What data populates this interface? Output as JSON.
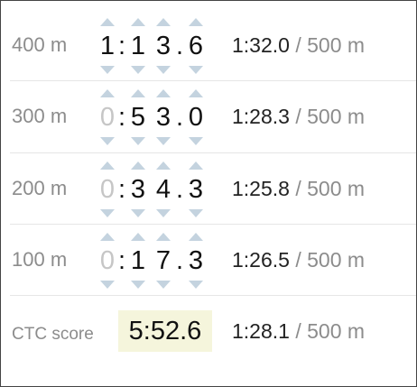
{
  "pieces": [
    {
      "distance": "400 m",
      "digits": [
        "1",
        "1",
        "3",
        "6"
      ],
      "dim": [
        false,
        false,
        false,
        false
      ],
      "split": "1:32.0",
      "per": " / 500 m"
    },
    {
      "distance": "300 m",
      "digits": [
        "0",
        "5",
        "3",
        "0"
      ],
      "dim": [
        true,
        false,
        false,
        false
      ],
      "split": "1:28.3",
      "per": " / 500 m"
    },
    {
      "distance": "200 m",
      "digits": [
        "0",
        "3",
        "4",
        "3"
      ],
      "dim": [
        true,
        false,
        false,
        false
      ],
      "split": "1:25.8",
      "per": " / 500 m"
    },
    {
      "distance": "100 m",
      "digits": [
        "0",
        "1",
        "7",
        "3"
      ],
      "dim": [
        true,
        false,
        false,
        false
      ],
      "split": "1:26.5",
      "per": " / 500 m"
    }
  ],
  "separators": [
    ":",
    "."
  ],
  "score": {
    "label": "CTC score",
    "value": "5:52.6",
    "split": "1:28.1",
    "per": " / 500 m"
  },
  "colors": {
    "arrow": "#c4d3df",
    "dim_digit": "#c6c6c6",
    "score_bg": "#f5f5dc"
  }
}
